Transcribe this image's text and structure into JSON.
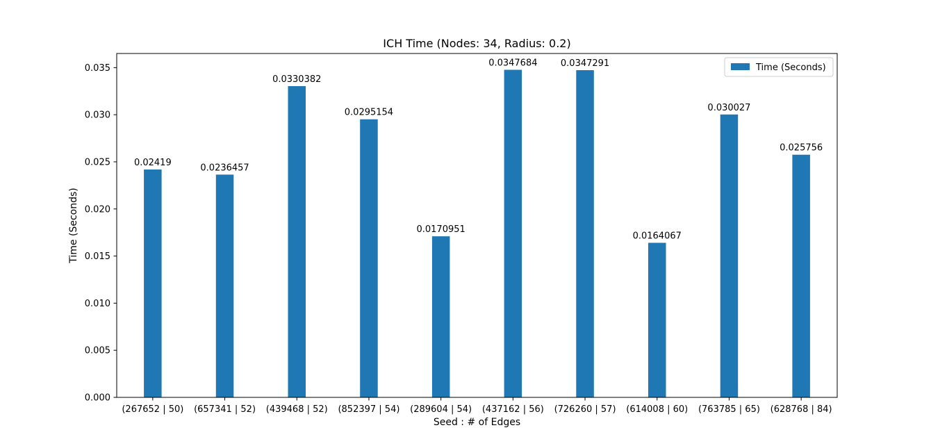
{
  "chart_data": {
    "type": "bar",
    "title": "ICH Time (Nodes: 34, Radius: 0.2)",
    "xlabel": "Seed : # of Edges",
    "ylabel": "Time (Seconds)",
    "categories": [
      "(267652 | 50)",
      "(657341 | 52)",
      "(439468 | 52)",
      "(852397 | 54)",
      "(289604 | 54)",
      "(437162 | 56)",
      "(726260 | 57)",
      "(614008 | 60)",
      "(763785 | 65)",
      "(628768 | 84)"
    ],
    "series": [
      {
        "name": "Time (Seconds)",
        "color": "#1f77b4",
        "values": [
          0.02419,
          0.0236457,
          0.0330382,
          0.0295154,
          0.0170951,
          0.0347684,
          0.0347291,
          0.0164067,
          0.030027,
          0.025756
        ],
        "data_labels": [
          "0.02419",
          "0.0236457",
          "0.0330382",
          "0.0295154",
          "0.0170951",
          "0.0347684",
          "0.0347291",
          "0.0164067",
          "0.030027",
          "0.025756"
        ]
      }
    ],
    "ylim": [
      0,
      0.0365
    ],
    "yticks": [
      0.0,
      0.005,
      0.01,
      0.015,
      0.02,
      0.025,
      0.03,
      0.035
    ],
    "ytick_labels": [
      "0.000",
      "0.005",
      "0.010",
      "0.015",
      "0.020",
      "0.025",
      "0.030",
      "0.035"
    ],
    "grid": false,
    "legend_position": "upper right"
  }
}
